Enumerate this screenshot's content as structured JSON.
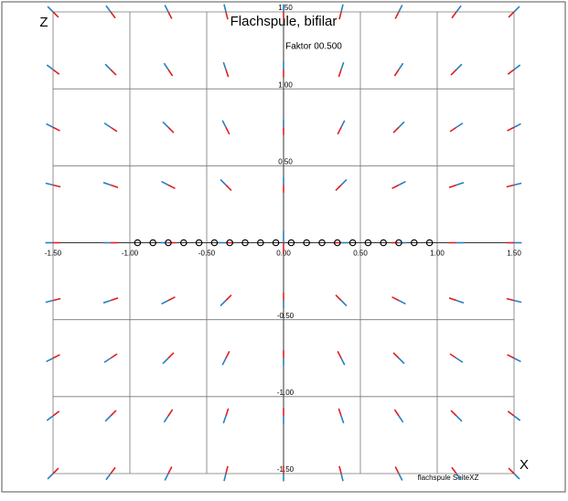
{
  "chart_data": {
    "type": "quiver",
    "title": "Flachspule, bifilar",
    "subtitle": "Faktor 00.500",
    "note": "flachspule SeiteXZ",
    "xlabel": "X",
    "ylabel": "Z",
    "xlim": [
      -1.5,
      1.5
    ],
    "ylim": [
      -1.5,
      1.5
    ],
    "xticks": [
      {
        "value": -1.5,
        "label": "-1.50"
      },
      {
        "value": -1,
        "label": "-1.00"
      },
      {
        "value": -0.5,
        "label": "-0.50"
      },
      {
        "value": 0,
        "label": "0.00"
      },
      {
        "value": 0.5,
        "label": "0.50"
      },
      {
        "value": 1,
        "label": "1.00"
      },
      {
        "value": 1.5,
        "label": "1.50"
      }
    ],
    "yticks": [
      {
        "value": -1.5,
        "label": "-1.50"
      },
      {
        "value": -1,
        "label": "-1.00"
      },
      {
        "value": -0.5,
        "label": "-0.50"
      },
      {
        "value": 0.5,
        "label": "0.50"
      },
      {
        "value": 1,
        "label": "1.00"
      },
      {
        "value": 1.5,
        "label": "1.50"
      }
    ],
    "grid": true,
    "tail_color": "#e02020",
    "head_color": "#2a7fc0",
    "coil_color": "#000000",
    "x": [
      -1.5,
      -1.125,
      -0.75,
      -0.375,
      0,
      0.375,
      0.75,
      1.125,
      1.5
    ],
    "z": [
      1.5,
      1.125,
      0.75,
      0.375,
      0,
      -0.375,
      -0.75,
      -1.125,
      -1.5
    ],
    "u": [
      [
        -0.071,
        -0.06,
        -0.045,
        -0.024,
        0,
        0.024,
        0.045,
        0.06,
        0.071
      ],
      [
        -0.08,
        -0.071,
        -0.055,
        -0.032,
        0,
        0.032,
        0.055,
        0.071,
        0.08
      ],
      [
        -0.089,
        -0.083,
        -0.071,
        -0.045,
        0,
        0.045,
        0.071,
        0.083,
        0.089
      ],
      [
        -0.097,
        -0.095,
        -0.089,
        -0.071,
        0,
        0.071,
        0.089,
        0.095,
        0.097
      ],
      [
        -0.1,
        -0.1,
        -0.1,
        -0.1,
        0,
        0.1,
        0.1,
        0.1,
        0.1
      ],
      [
        -0.097,
        -0.095,
        -0.089,
        -0.071,
        0,
        0.071,
        0.089,
        0.095,
        0.097
      ],
      [
        -0.089,
        -0.083,
        -0.071,
        -0.045,
        0,
        0.045,
        0.071,
        0.083,
        0.089
      ],
      [
        -0.08,
        -0.071,
        -0.055,
        -0.032,
        0,
        0.032,
        0.055,
        0.071,
        0.08
      ],
      [
        -0.071,
        -0.06,
        -0.045,
        -0.024,
        0,
        0.024,
        0.045,
        0.06,
        0.071
      ]
    ],
    "v": [
      [
        0.071,
        0.08,
        0.089,
        0.097,
        0.1,
        0.097,
        0.089,
        0.08,
        0.071
      ],
      [
        0.06,
        0.071,
        0.083,
        0.095,
        0.1,
        0.095,
        0.083,
        0.071,
        0.06
      ],
      [
        0.045,
        0.055,
        0.071,
        0.089,
        0.1,
        0.089,
        0.071,
        0.055,
        0.045
      ],
      [
        0.024,
        0.032,
        0.045,
        0.071,
        0.1,
        0.071,
        0.045,
        0.032,
        0.024
      ],
      [
        0,
        0,
        0,
        0,
        0.15,
        0,
        0,
        0,
        0
      ],
      [
        -0.024,
        -0.032,
        -0.045,
        -0.071,
        -0.1,
        -0.071,
        -0.045,
        -0.032,
        -0.024
      ],
      [
        -0.045,
        -0.055,
        -0.071,
        -0.089,
        -0.1,
        -0.089,
        -0.071,
        -0.055,
        -0.045
      ],
      [
        -0.06,
        -0.071,
        -0.083,
        -0.095,
        -0.1,
        -0.095,
        -0.083,
        -0.071,
        -0.06
      ],
      [
        -0.071,
        -0.08,
        -0.089,
        -0.097,
        -0.1,
        -0.097,
        -0.089,
        -0.08,
        -0.071
      ]
    ],
    "coil_x": [
      -0.95,
      -0.85,
      -0.75,
      -0.65,
      -0.55,
      -0.45,
      -0.35,
      -0.25,
      -0.15,
      -0.05,
      0.05,
      0.15,
      0.25,
      0.35,
      0.45,
      0.55,
      0.65,
      0.75,
      0.85,
      0.95
    ]
  }
}
